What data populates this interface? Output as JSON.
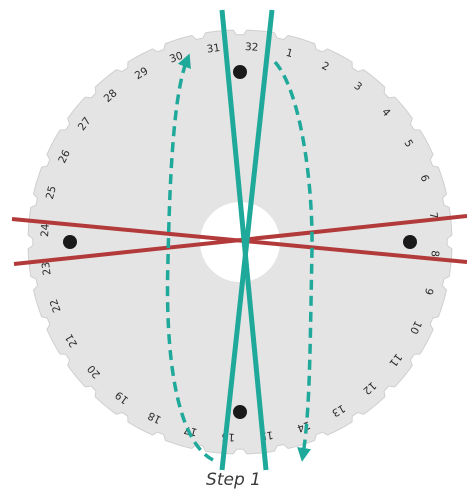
{
  "disk": {
    "slot_labels": [
      "32",
      "1",
      "2",
      "3",
      "4",
      "5",
      "6",
      "7",
      "8",
      "9",
      "10",
      "11",
      "12",
      "13",
      "14",
      "15",
      "16",
      "17",
      "18",
      "19",
      "20",
      "21",
      "22",
      "23",
      "24",
      "25",
      "26",
      "27",
      "28",
      "29",
      "30",
      "31"
    ],
    "disk_color": "#e4e4e4",
    "marker_slots": [
      "32",
      "8",
      "16",
      "24"
    ]
  },
  "threads": {
    "teal_color": "#1fa99a",
    "red_color": "#b33a3a",
    "arrow_style": "dashed"
  },
  "caption": "Step 1"
}
